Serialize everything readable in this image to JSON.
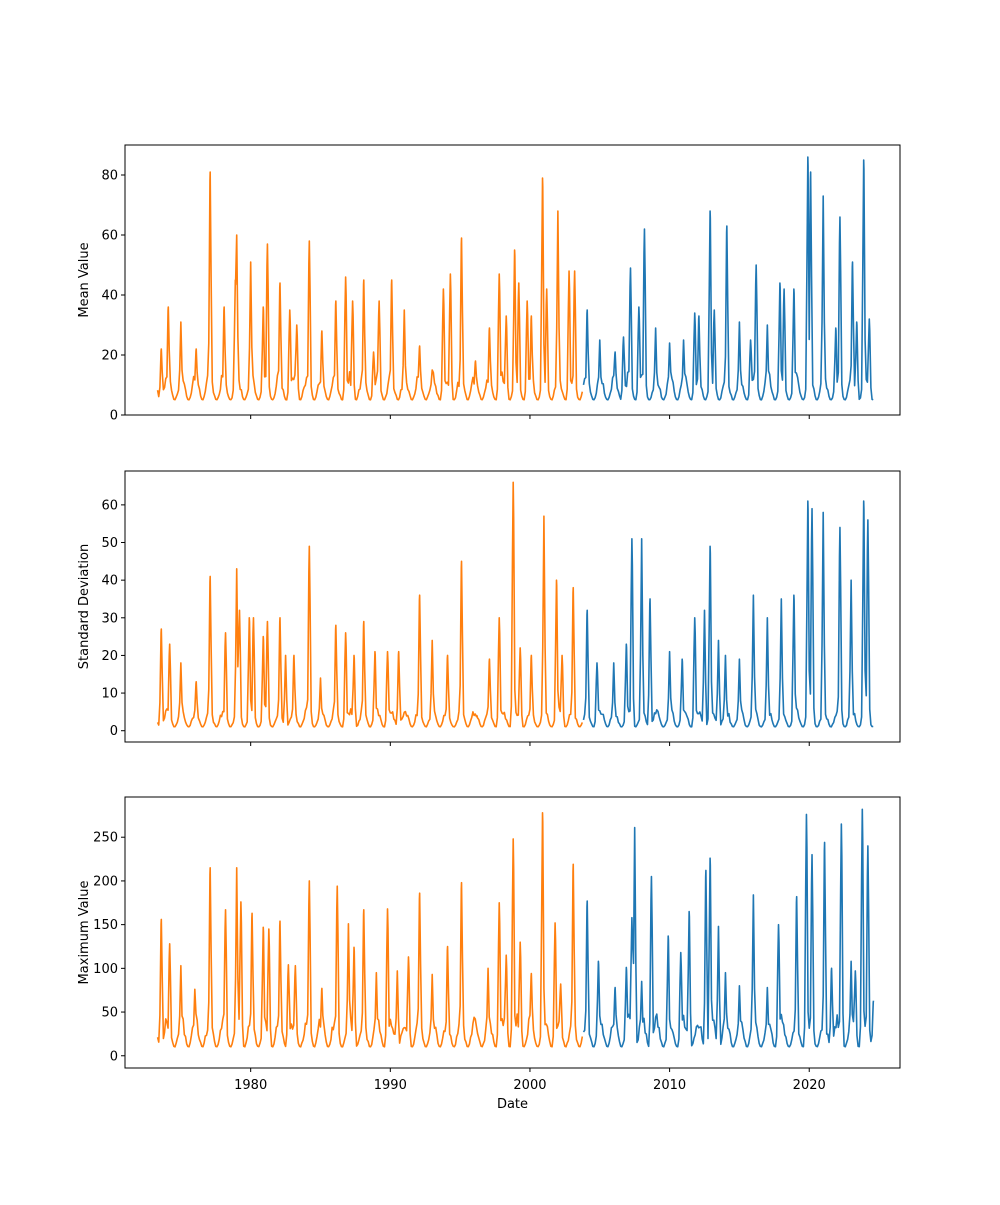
{
  "chart_data": [
    {
      "type": "line",
      "panel": "top",
      "title": "",
      "xlabel": "",
      "ylabel": "Mean Value",
      "xlim": [
        1971.0,
        2026.5
      ],
      "ylim": [
        0,
        90
      ],
      "yticks": [
        0,
        20,
        40,
        60,
        80
      ],
      "xticks": [
        1980,
        1990,
        2000,
        2010,
        2020
      ],
      "x_ticklabels_visible": false,
      "grid": false,
      "legend": "none",
      "series": [
        {
          "color": "#ff7f0e",
          "x_range": [
            "1973-05",
            "2003-10"
          ],
          "pattern": "monthly seasonal cycle, mostly 5-20 with yearly peaks",
          "peaks": [
            [
              1973.6,
              22
            ],
            [
              1974.1,
              36
            ],
            [
              1975.0,
              31
            ],
            [
              1976.1,
              22
            ],
            [
              1977.1,
              81
            ],
            [
              1978.1,
              36
            ],
            [
              1978.9,
              45
            ],
            [
              1979.0,
              60
            ],
            [
              1980.0,
              51
            ],
            [
              1980.9,
              36
            ],
            [
              1981.2,
              57
            ],
            [
              1982.1,
              44
            ],
            [
              1982.8,
              35
            ],
            [
              1983.3,
              30
            ],
            [
              1984.2,
              58
            ],
            [
              1985.1,
              28
            ],
            [
              1986.1,
              38
            ],
            [
              1986.8,
              46
            ],
            [
              1987.3,
              38
            ],
            [
              1988.1,
              45
            ],
            [
              1988.8,
              21
            ],
            [
              1989.2,
              38
            ],
            [
              1990.1,
              45
            ],
            [
              1991.0,
              35
            ],
            [
              1992.1,
              23
            ],
            [
              1993.0,
              15
            ],
            [
              1993.8,
              42
            ],
            [
              1994.3,
              47
            ],
            [
              1995.1,
              59
            ],
            [
              1996.1,
              18
            ],
            [
              1997.1,
              29
            ],
            [
              1997.8,
              47
            ],
            [
              1998.3,
              33
            ],
            [
              1998.9,
              55
            ],
            [
              1999.2,
              44
            ],
            [
              1999.8,
              38
            ],
            [
              2000.1,
              33
            ],
            [
              2000.9,
              79
            ],
            [
              2001.2,
              42
            ],
            [
              2002.0,
              68
            ],
            [
              2002.8,
              48
            ],
            [
              2003.2,
              48
            ]
          ]
        },
        {
          "color": "#1f77b4",
          "x_range": [
            "2003-11",
            "2024-08"
          ],
          "pattern": "monthly seasonal cycle, mostly 5-20 with yearly peaks",
          "peaks": [
            [
              2004.1,
              35
            ],
            [
              2005.0,
              25
            ],
            [
              2006.1,
              21
            ],
            [
              2006.7,
              26
            ],
            [
              2007.2,
              49
            ],
            [
              2007.8,
              36
            ],
            [
              2008.2,
              62
            ],
            [
              2009.0,
              29
            ],
            [
              2010.0,
              24
            ],
            [
              2011.0,
              25
            ],
            [
              2011.8,
              34
            ],
            [
              2012.1,
              33
            ],
            [
              2012.9,
              68
            ],
            [
              2013.2,
              35
            ],
            [
              2014.1,
              63
            ],
            [
              2015.0,
              31
            ],
            [
              2015.8,
              25
            ],
            [
              2016.2,
              50
            ],
            [
              2017.0,
              30
            ],
            [
              2017.9,
              44
            ],
            [
              2018.2,
              42
            ],
            [
              2018.9,
              42
            ],
            [
              2019.9,
              86
            ],
            [
              2020.1,
              81
            ],
            [
              2021.0,
              73
            ],
            [
              2021.9,
              29
            ],
            [
              2022.2,
              66
            ],
            [
              2023.1,
              51
            ],
            [
              2023.4,
              31
            ],
            [
              2023.9,
              85
            ],
            [
              2024.3,
              32
            ]
          ]
        }
      ]
    },
    {
      "type": "line",
      "panel": "middle",
      "title": "",
      "xlabel": "",
      "ylabel": "Standard Deviation",
      "xlim": [
        1971.0,
        2026.5
      ],
      "ylim": [
        -3,
        69
      ],
      "yticks": [
        0,
        10,
        20,
        30,
        40,
        50,
        60
      ],
      "xticks": [
        1980,
        1990,
        2000,
        2010,
        2020
      ],
      "x_ticklabels_visible": false,
      "grid": false,
      "legend": "none",
      "series": [
        {
          "color": "#ff7f0e",
          "x_range": [
            "1973-05",
            "2003-10"
          ],
          "pattern": "monthly seasonal cycle, mostly 1-10 with spikes",
          "peaks": [
            [
              1973.6,
              27
            ],
            [
              1974.2,
              23
            ],
            [
              1975.0,
              18
            ],
            [
              1976.1,
              13
            ],
            [
              1977.1,
              41
            ],
            [
              1978.2,
              26
            ],
            [
              1979.0,
              43
            ],
            [
              1979.2,
              32
            ],
            [
              1979.9,
              30
            ],
            [
              1980.2,
              30
            ],
            [
              1980.9,
              25
            ],
            [
              1981.2,
              29
            ],
            [
              1982.1,
              30
            ],
            [
              1982.5,
              20
            ],
            [
              1983.1,
              20
            ],
            [
              1984.2,
              49
            ],
            [
              1985.0,
              14
            ],
            [
              1986.1,
              28
            ],
            [
              1986.8,
              26
            ],
            [
              1987.4,
              20
            ],
            [
              1988.1,
              29
            ],
            [
              1988.9,
              21
            ],
            [
              1989.8,
              21
            ],
            [
              1990.6,
              21
            ],
            [
              1992.1,
              36
            ],
            [
              1993.0,
              24
            ],
            [
              1994.1,
              20
            ],
            [
              1995.1,
              45
            ],
            [
              1996.2,
              4
            ],
            [
              1997.1,
              19
            ],
            [
              1997.8,
              30
            ],
            [
              1998.8,
              66
            ],
            [
              1999.3,
              22
            ],
            [
              2000.1,
              20
            ],
            [
              2001.0,
              57
            ],
            [
              2001.9,
              40
            ],
            [
              2002.3,
              20
            ],
            [
              2003.1,
              38
            ]
          ]
        },
        {
          "color": "#1f77b4",
          "x_range": [
            "2003-11",
            "2024-08"
          ],
          "pattern": "monthly seasonal cycle, mostly 1-10 with spikes",
          "peaks": [
            [
              2004.1,
              32
            ],
            [
              2004.8,
              18
            ],
            [
              2006.0,
              18
            ],
            [
              2006.9,
              23
            ],
            [
              2007.3,
              51
            ],
            [
              2008.0,
              51
            ],
            [
              2008.6,
              35
            ],
            [
              2010.0,
              21
            ],
            [
              2010.9,
              19
            ],
            [
              2011.8,
              30
            ],
            [
              2012.5,
              32
            ],
            [
              2012.9,
              49
            ],
            [
              2013.5,
              24
            ],
            [
              2014.0,
              20
            ],
            [
              2015.0,
              19
            ],
            [
              2016.0,
              36
            ],
            [
              2017.0,
              30
            ],
            [
              2018.0,
              35
            ],
            [
              2018.9,
              36
            ],
            [
              2019.9,
              61
            ],
            [
              2020.2,
              59
            ],
            [
              2021.0,
              58
            ],
            [
              2022.2,
              54
            ],
            [
              2023.0,
              40
            ],
            [
              2023.9,
              61
            ],
            [
              2024.2,
              56
            ],
            [
              2024.7,
              2
            ]
          ]
        }
      ]
    },
    {
      "type": "line",
      "panel": "bottom",
      "title": "",
      "xlabel": "Date",
      "ylabel": "Maximum Value",
      "xlim": [
        1971.0,
        2026.5
      ],
      "ylim": [
        -14,
        296
      ],
      "yticks": [
        0,
        50,
        100,
        150,
        200,
        250
      ],
      "xticks": [
        1980,
        1990,
        2000,
        2010,
        2020
      ],
      "x_ticklabels_visible": true,
      "grid": false,
      "legend": "none",
      "series": [
        {
          "color": "#ff7f0e",
          "x_range": [
            "1973-05",
            "2003-10"
          ],
          "pattern": "monthly seasonal cycle, mostly 10-60 with spikes",
          "peaks": [
            [
              1973.6,
              156
            ],
            [
              1974.2,
              128
            ],
            [
              1975.0,
              103
            ],
            [
              1976.0,
              76
            ],
            [
              1977.1,
              215
            ],
            [
              1978.2,
              167
            ],
            [
              1979.0,
              215
            ],
            [
              1979.3,
              176
            ],
            [
              1980.1,
              163
            ],
            [
              1980.9,
              147
            ],
            [
              1981.3,
              145
            ],
            [
              1982.1,
              154
            ],
            [
              1982.7,
              104
            ],
            [
              1983.2,
              103
            ],
            [
              1984.2,
              200
            ],
            [
              1985.1,
              77
            ],
            [
              1986.2,
              194
            ],
            [
              1987.0,
              151
            ],
            [
              1987.4,
              124
            ],
            [
              1988.1,
              167
            ],
            [
              1989.0,
              95
            ],
            [
              1989.8,
              168
            ],
            [
              1990.5,
              97
            ],
            [
              1991.3,
              113
            ],
            [
              1992.1,
              186
            ],
            [
              1993.0,
              93
            ],
            [
              1994.1,
              125
            ],
            [
              1995.1,
              198
            ],
            [
              1996.0,
              44
            ],
            [
              1997.0,
              100
            ],
            [
              1997.8,
              175
            ],
            [
              1998.3,
              115
            ],
            [
              1998.8,
              248
            ],
            [
              1999.3,
              130
            ],
            [
              2000.1,
              94
            ],
            [
              2000.9,
              278
            ],
            [
              2001.8,
              152
            ],
            [
              2002.2,
              82
            ],
            [
              2003.1,
              219
            ]
          ]
        },
        {
          "color": "#1f77b4",
          "x_range": [
            "2003-11",
            "2024-08"
          ],
          "pattern": "monthly seasonal cycle, mostly 10-60 with spikes",
          "peaks": [
            [
              2004.1,
              177
            ],
            [
              2004.9,
              108
            ],
            [
              2006.1,
              78
            ],
            [
              2006.9,
              101
            ],
            [
              2007.3,
              158
            ],
            [
              2007.5,
              261
            ],
            [
              2008.0,
              85
            ],
            [
              2008.7,
              205
            ],
            [
              2009.9,
              137
            ],
            [
              2010.8,
              118
            ],
            [
              2011.4,
              165
            ],
            [
              2012.6,
              212
            ],
            [
              2012.9,
              226
            ],
            [
              2013.5,
              148
            ],
            [
              2014.0,
              95
            ],
            [
              2015.0,
              80
            ],
            [
              2016.0,
              184
            ],
            [
              2017.0,
              78
            ],
            [
              2017.8,
              150
            ],
            [
              2019.1,
              182
            ],
            [
              2019.8,
              276
            ],
            [
              2020.2,
              230
            ],
            [
              2021.1,
              244
            ],
            [
              2021.6,
              100
            ],
            [
              2022.3,
              265
            ],
            [
              2023.0,
              108
            ],
            [
              2023.3,
              97
            ],
            [
              2023.8,
              282
            ],
            [
              2024.2,
              240
            ],
            [
              2024.6,
              63
            ]
          ]
        }
      ]
    }
  ]
}
